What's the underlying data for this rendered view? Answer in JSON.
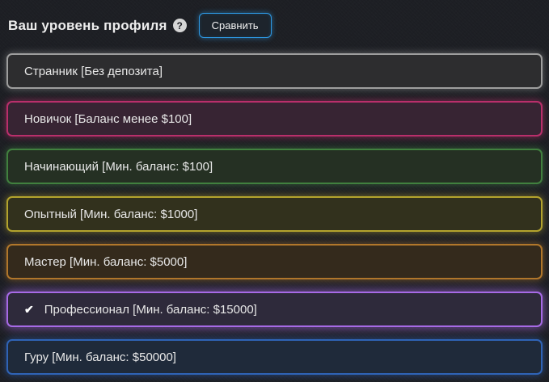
{
  "header": {
    "title": "Ваш уровень профиля",
    "compare_button": "Сравнить"
  },
  "icons": {
    "help": "?",
    "check": "✔"
  },
  "levels": [
    {
      "label": "Странник [Без депозита]",
      "border": "#9e9e9e",
      "bg": "#2d2d2f",
      "glow": "rgba(158,158,158,0.45)",
      "selected": false
    },
    {
      "label": "Новичок [Баланс менее $100]",
      "border": "#b92f6b",
      "bg": "#372433",
      "glow": "rgba(185,47,107,0.55)",
      "selected": false
    },
    {
      "label": "Начинающий [Мин. баланс: $100]",
      "border": "#41803f",
      "bg": "#253023",
      "glow": "rgba(65,128,63,0.55)",
      "selected": false
    },
    {
      "label": "Опытный [Мин. баланс: $1000]",
      "border": "#b3a32d",
      "bg": "#32311d",
      "glow": "rgba(179,163,45,0.5)",
      "selected": false
    },
    {
      "label": "Мастер [Мин. баланс: $5000]",
      "border": "#b1772b",
      "bg": "#342a1c",
      "glow": "rgba(177,119,43,0.5)",
      "selected": false
    },
    {
      "label": "Профессионал [Мин. баланс: $15000]",
      "border": "#a76ae6",
      "bg": "#2e2a3b",
      "glow": "rgba(167,106,230,0.6)",
      "selected": true
    },
    {
      "label": "Гуру [Мин. баланс: $50000]",
      "border": "#2f63b6",
      "bg": "#1f2a3a",
      "glow": "rgba(47,99,182,0.55)",
      "selected": false
    }
  ],
  "colors": {
    "page_bg": "#1d1f24",
    "accent_blue": "#2e9ae6",
    "text": "#e8e8e8"
  }
}
